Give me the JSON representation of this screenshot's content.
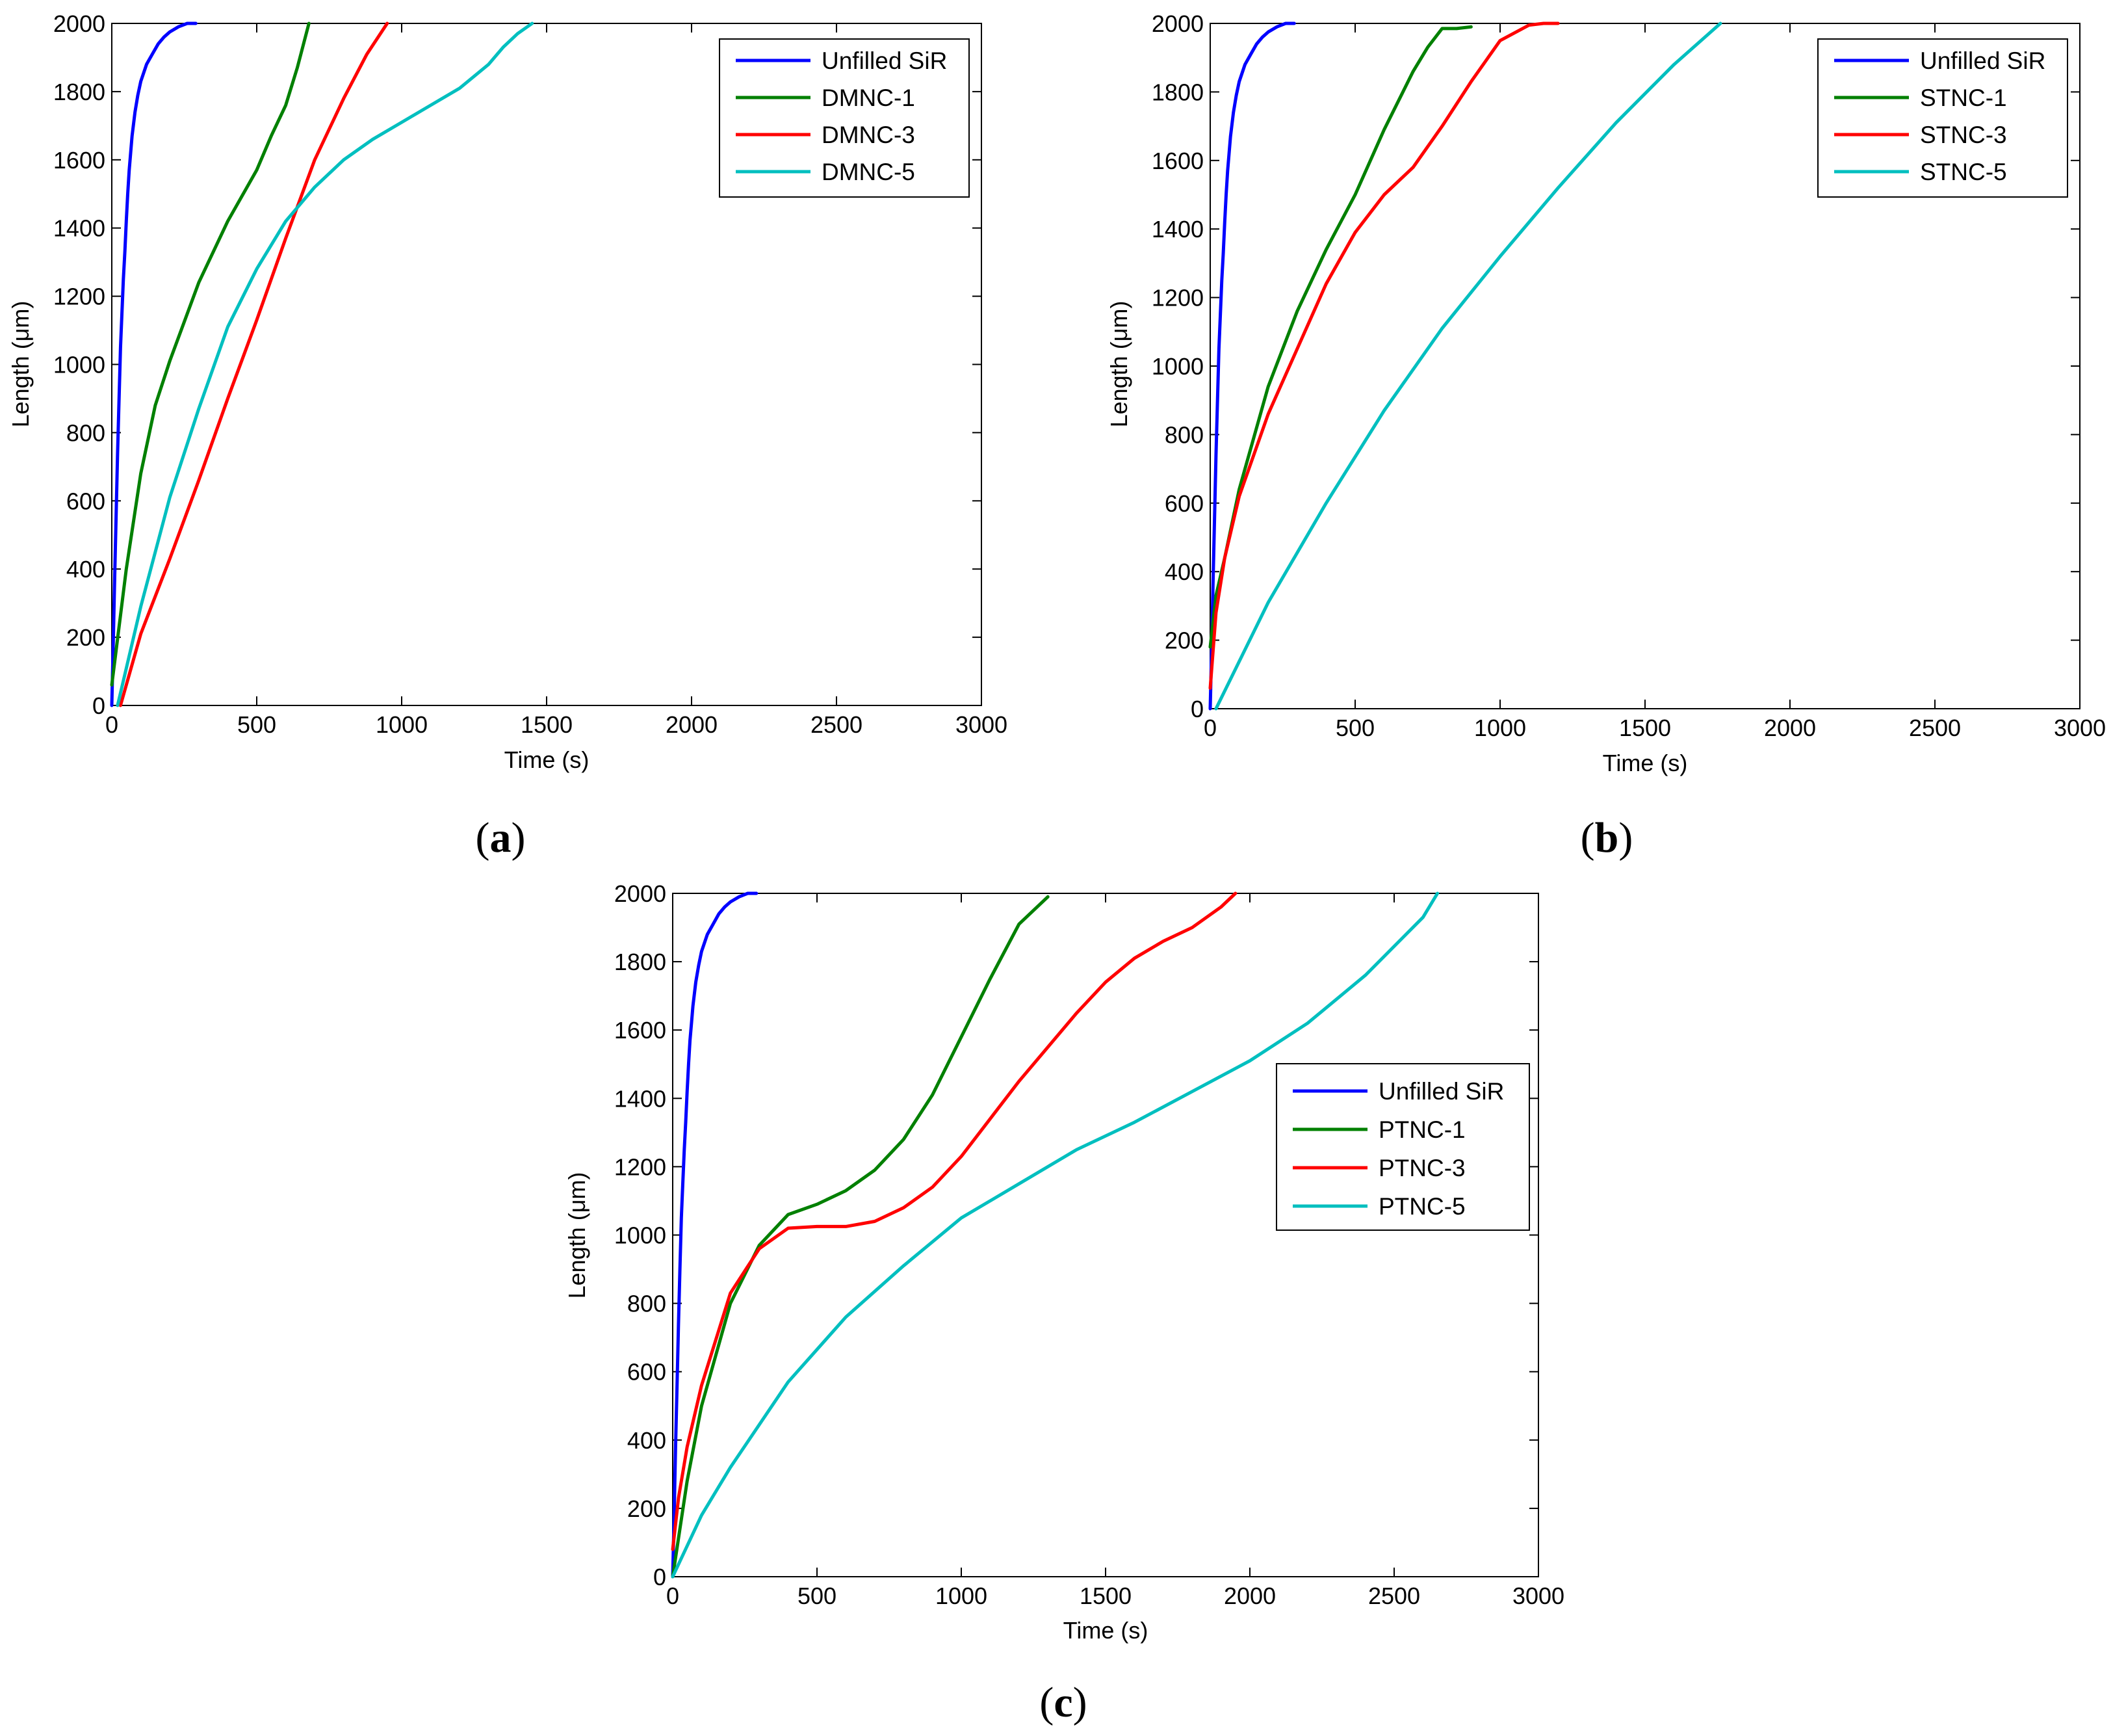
{
  "chart_data": [
    {
      "type": "line",
      "panel_label": "a",
      "xlabel": "Time (s)",
      "ylabel": "Length (μm)",
      "xlim": [
        0,
        3000
      ],
      "ylim": [
        0,
        2000
      ],
      "xticks": [
        0,
        500,
        1000,
        1500,
        2000,
        2500,
        3000
      ],
      "yticks": [
        0,
        200,
        400,
        600,
        800,
        1000,
        1200,
        1400,
        1600,
        1800,
        2000
      ],
      "legend_position": "top-right",
      "series": [
        {
          "name": "Unfilled SiR",
          "color": "#0000ff",
          "x": [
            0,
            5,
            10,
            15,
            20,
            25,
            30,
            35,
            40,
            45,
            50,
            55,
            60,
            65,
            70,
            80,
            90,
            100,
            120,
            140,
            160,
            180,
            200,
            230,
            260,
            290
          ],
          "y": [
            0,
            180,
            380,
            560,
            740,
            900,
            1050,
            1150,
            1250,
            1330,
            1420,
            1500,
            1570,
            1620,
            1670,
            1740,
            1790,
            1830,
            1880,
            1910,
            1940,
            1960,
            1975,
            1990,
            2000,
            2000
          ]
        },
        {
          "name": "DMNC-1",
          "color": "#008000",
          "x": [
            0,
            50,
            100,
            150,
            200,
            300,
            400,
            500,
            550,
            600,
            640,
            680
          ],
          "y": [
            60,
            400,
            680,
            880,
            1010,
            1240,
            1420,
            1570,
            1670,
            1760,
            1870,
            2000
          ]
        },
        {
          "name": "DMNC-3",
          "color": "#ff0000",
          "x": [
            30,
            100,
            200,
            300,
            400,
            500,
            600,
            700,
            800,
            880,
            950
          ],
          "y": [
            0,
            210,
            430,
            660,
            900,
            1130,
            1370,
            1600,
            1780,
            1910,
            2000
          ]
        },
        {
          "name": "DMNC-5",
          "color": "#00bfbf",
          "x": [
            20,
            100,
            200,
            300,
            400,
            500,
            600,
            700,
            800,
            900,
            1000,
            1100,
            1200,
            1300,
            1350,
            1400,
            1450
          ],
          "y": [
            0,
            290,
            610,
            870,
            1110,
            1280,
            1420,
            1520,
            1600,
            1660,
            1710,
            1760,
            1810,
            1880,
            1930,
            1970,
            2000
          ]
        }
      ]
    },
    {
      "type": "line",
      "panel_label": "b",
      "xlabel": "Time (s)",
      "ylabel": "Length (μm)",
      "xlim": [
        0,
        3000
      ],
      "ylim": [
        0,
        2000
      ],
      "xticks": [
        0,
        500,
        1000,
        1500,
        2000,
        2500,
        3000
      ],
      "yticks": [
        0,
        200,
        400,
        600,
        800,
        1000,
        1200,
        1400,
        1600,
        1800,
        2000
      ],
      "legend_position": "top-right",
      "series": [
        {
          "name": "Unfilled SiR",
          "color": "#0000ff",
          "x": [
            0,
            5,
            10,
            15,
            20,
            25,
            30,
            35,
            40,
            45,
            50,
            55,
            60,
            65,
            70,
            80,
            90,
            100,
            120,
            140,
            160,
            180,
            200,
            230,
            260,
            290
          ],
          "y": [
            0,
            180,
            380,
            560,
            740,
            900,
            1050,
            1150,
            1250,
            1330,
            1420,
            1500,
            1570,
            1620,
            1670,
            1740,
            1790,
            1830,
            1880,
            1910,
            1940,
            1960,
            1975,
            1990,
            2000,
            2000
          ]
        },
        {
          "name": "STNC-1",
          "color": "#008000",
          "x": [
            0,
            20,
            50,
            100,
            200,
            300,
            400,
            500,
            600,
            700,
            750,
            800,
            850,
            900
          ],
          "y": [
            180,
            330,
            440,
            640,
            940,
            1160,
            1340,
            1500,
            1690,
            1860,
            1930,
            1985,
            1985,
            1990
          ]
        },
        {
          "name": "STNC-3",
          "color": "#ff0000",
          "x": [
            0,
            20,
            50,
            100,
            200,
            300,
            400,
            500,
            600,
            700,
            800,
            900,
            1000,
            1100,
            1150,
            1200
          ],
          "y": [
            60,
            280,
            440,
            620,
            860,
            1050,
            1240,
            1390,
            1500,
            1580,
            1700,
            1830,
            1950,
            1995,
            2000,
            2000
          ]
        },
        {
          "name": "STNC-5",
          "color": "#00bfbf",
          "x": [
            20,
            200,
            400,
            600,
            800,
            1000,
            1200,
            1400,
            1600,
            1760
          ],
          "y": [
            0,
            310,
            600,
            870,
            1110,
            1320,
            1520,
            1710,
            1880,
            2000
          ]
        }
      ]
    },
    {
      "type": "line",
      "panel_label": "c",
      "xlabel": "Time (s)",
      "ylabel": "Length (μm)",
      "xlim": [
        0,
        3000
      ],
      "ylim": [
        0,
        2000
      ],
      "xticks": [
        0,
        500,
        1000,
        1500,
        2000,
        2500,
        3000
      ],
      "yticks": [
        0,
        200,
        400,
        600,
        800,
        1000,
        1200,
        1400,
        1600,
        1800,
        2000
      ],
      "legend_position": "center-right",
      "series": [
        {
          "name": "Unfilled SiR",
          "color": "#0000ff",
          "x": [
            0,
            5,
            10,
            15,
            20,
            25,
            30,
            35,
            40,
            45,
            50,
            55,
            60,
            65,
            70,
            80,
            90,
            100,
            120,
            140,
            160,
            180,
            200,
            230,
            260,
            290
          ],
          "y": [
            0,
            180,
            380,
            560,
            740,
            900,
            1050,
            1150,
            1250,
            1330,
            1420,
            1500,
            1570,
            1620,
            1670,
            1740,
            1790,
            1830,
            1880,
            1910,
            1940,
            1960,
            1975,
            1990,
            2000,
            2000
          ]
        },
        {
          "name": "PTNC-1",
          "color": "#008000",
          "x": [
            0,
            50,
            100,
            200,
            300,
            400,
            500,
            600,
            700,
            800,
            900,
            1000,
            1100,
            1200,
            1300
          ],
          "y": [
            0,
            280,
            500,
            800,
            970,
            1060,
            1090,
            1130,
            1190,
            1280,
            1410,
            1580,
            1750,
            1910,
            1990
          ]
        },
        {
          "name": "PTNC-3",
          "color": "#ff0000",
          "x": [
            0,
            20,
            50,
            100,
            200,
            300,
            400,
            500,
            600,
            700,
            800,
            900,
            1000,
            1200,
            1400,
            1500,
            1600,
            1700,
            1800,
            1900,
            1950
          ],
          "y": [
            80,
            230,
            380,
            560,
            830,
            960,
            1020,
            1025,
            1025,
            1040,
            1080,
            1140,
            1230,
            1450,
            1650,
            1740,
            1810,
            1860,
            1900,
            1960,
            2000
          ]
        },
        {
          "name": "PTNC-5",
          "color": "#00bfbf",
          "x": [
            0,
            100,
            200,
            400,
            600,
            800,
            1000,
            1200,
            1400,
            1600,
            1800,
            2000,
            2200,
            2400,
            2600,
            2650
          ],
          "y": [
            0,
            180,
            320,
            570,
            760,
            910,
            1050,
            1150,
            1250,
            1330,
            1420,
            1510,
            1620,
            1760,
            1930,
            2000
          ]
        }
      ]
    }
  ]
}
